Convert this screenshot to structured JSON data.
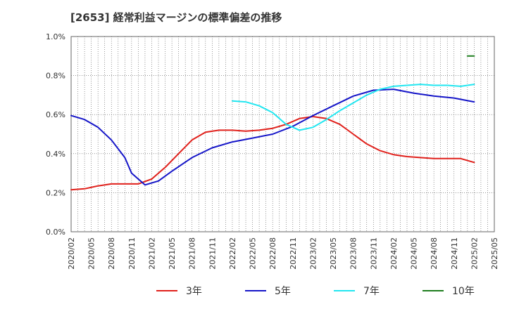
{
  "chart_data": {
    "type": "line",
    "title": "[2653]  経常利益マージンの標準偏差の推移",
    "xlabel": "",
    "ylabel": "",
    "x_ticks": [
      "2020/02",
      "2020/05",
      "2020/08",
      "2020/11",
      "2021/02",
      "2021/05",
      "2021/08",
      "2021/11",
      "2022/02",
      "2022/05",
      "2022/08",
      "2022/11",
      "2023/02",
      "2023/05",
      "2023/08",
      "2023/11",
      "2024/02",
      "2024/05",
      "2024/08",
      "2024/11",
      "2025/02",
      "2025/05"
    ],
    "y_ticks": [
      "0.0%",
      "0.2%",
      "0.4%",
      "0.6%",
      "0.8%",
      "1.0%"
    ],
    "ylim": [
      0,
      1.0
    ],
    "grid": true,
    "legend_position": "bottom",
    "series": [
      {
        "name": "3年",
        "color": "#e0201b",
        "points": [
          [
            "2020/02",
            0.215
          ],
          [
            "2020/04",
            0.22
          ],
          [
            "2020/06",
            0.235
          ],
          [
            "2020/08",
            0.245
          ],
          [
            "2020/10",
            0.245
          ],
          [
            "2020/12",
            0.245
          ],
          [
            "2021/02",
            0.27
          ],
          [
            "2021/04",
            0.33
          ],
          [
            "2021/06",
            0.4
          ],
          [
            "2021/08",
            0.47
          ],
          [
            "2021/10",
            0.51
          ],
          [
            "2021/12",
            0.52
          ],
          [
            "2022/02",
            0.52
          ],
          [
            "2022/04",
            0.515
          ],
          [
            "2022/06",
            0.52
          ],
          [
            "2022/08",
            0.53
          ],
          [
            "2022/10",
            0.55
          ],
          [
            "2022/12",
            0.58
          ],
          [
            "2023/02",
            0.59
          ],
          [
            "2023/04",
            0.58
          ],
          [
            "2023/06",
            0.55
          ],
          [
            "2023/08",
            0.5
          ],
          [
            "2023/10",
            0.45
          ],
          [
            "2023/12",
            0.415
          ],
          [
            "2024/02",
            0.395
          ],
          [
            "2024/04",
            0.385
          ],
          [
            "2024/06",
            0.38
          ],
          [
            "2024/08",
            0.375
          ],
          [
            "2024/10",
            0.375
          ],
          [
            "2024/12",
            0.375
          ],
          [
            "2025/02",
            0.355
          ]
        ]
      },
      {
        "name": "5年",
        "color": "#1515c8",
        "points": [
          [
            "2020/02",
            0.595
          ],
          [
            "2020/04",
            0.575
          ],
          [
            "2020/06",
            0.535
          ],
          [
            "2020/08",
            0.47
          ],
          [
            "2020/10",
            0.38
          ],
          [
            "2020/11",
            0.3
          ],
          [
            "2021/01",
            0.24
          ],
          [
            "2021/03",
            0.26
          ],
          [
            "2021/05",
            0.31
          ],
          [
            "2021/08",
            0.38
          ],
          [
            "2021/11",
            0.43
          ],
          [
            "2022/02",
            0.46
          ],
          [
            "2022/05",
            0.48
          ],
          [
            "2022/08",
            0.5
          ],
          [
            "2022/11",
            0.54
          ],
          [
            "2023/02",
            0.595
          ],
          [
            "2023/05",
            0.645
          ],
          [
            "2023/08",
            0.695
          ],
          [
            "2023/11",
            0.725
          ],
          [
            "2024/02",
            0.73
          ],
          [
            "2024/05",
            0.71
          ],
          [
            "2024/08",
            0.695
          ],
          [
            "2024/11",
            0.685
          ],
          [
            "2025/02",
            0.665
          ]
        ]
      },
      {
        "name": "7年",
        "color": "#22e6f0",
        "points": [
          [
            "2022/02",
            0.67
          ],
          [
            "2022/04",
            0.665
          ],
          [
            "2022/06",
            0.645
          ],
          [
            "2022/08",
            0.61
          ],
          [
            "2022/10",
            0.55
          ],
          [
            "2022/12",
            0.52
          ],
          [
            "2023/02",
            0.535
          ],
          [
            "2023/04",
            0.575
          ],
          [
            "2023/06",
            0.62
          ],
          [
            "2023/08",
            0.66
          ],
          [
            "2023/10",
            0.7
          ],
          [
            "2023/12",
            0.73
          ],
          [
            "2024/02",
            0.745
          ],
          [
            "2024/04",
            0.75
          ],
          [
            "2024/06",
            0.755
          ],
          [
            "2024/08",
            0.75
          ],
          [
            "2024/10",
            0.75
          ],
          [
            "2024/12",
            0.745
          ],
          [
            "2025/02",
            0.755
          ]
        ]
      },
      {
        "name": "10年",
        "color": "#1e7d1e",
        "points": [
          [
            "2025/01",
            0.9
          ],
          [
            "2025/02",
            0.9
          ]
        ]
      }
    ]
  }
}
